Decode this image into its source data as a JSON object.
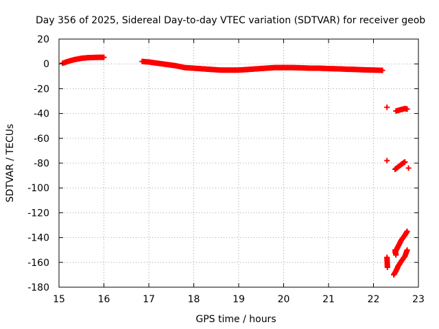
{
  "chart_data": {
    "type": "scatter",
    "title": "Day 356 of 2025, Sidereal Day-to-day VTEC variation (SDTVAR) for receiver geob",
    "xlabel": "GPS time / hours",
    "ylabel": "SDTVAR / TECUs",
    "xlim": [
      15,
      23
    ],
    "ylim": [
      -180,
      20
    ],
    "xticks": [
      15,
      16,
      17,
      18,
      19,
      20,
      21,
      22,
      23
    ],
    "yticks": [
      20,
      0,
      -20,
      -40,
      -60,
      -80,
      -100,
      -120,
      -140,
      -160,
      -180
    ],
    "grid": true,
    "marker": "+",
    "color": "#ff0000",
    "series": [
      {
        "name": "SDTVAR",
        "segments": [
          {
            "x": [
              15.08,
              15.2,
              15.35,
              15.5,
              15.65,
              15.8,
              15.95,
              16.0
            ],
            "y": [
              0.5,
              2,
              3.5,
              4.5,
              5,
              5.2,
              5.3,
              5.3
            ]
          },
          {
            "x": [
              16.85,
              17.0,
              17.2,
              17.4,
              17.6,
              17.8,
              18.0,
              18.2,
              18.4,
              18.6,
              18.8,
              19.0,
              19.2,
              19.4,
              19.6,
              19.8,
              20.0,
              20.2,
              20.4,
              20.6,
              20.8,
              21.0,
              21.2,
              21.4,
              21.6,
              21.8,
              22.0,
              22.2
            ],
            "y": [
              2,
              1.5,
              0.5,
              -0.5,
              -1.5,
              -3,
              -3.5,
              -4,
              -4.5,
              -5,
              -5,
              -5,
              -4.5,
              -4,
              -3.5,
              -3,
              -3,
              -3,
              -3.2,
              -3.5,
              -3.5,
              -3.8,
              -4,
              -4.3,
              -4.5,
              -4.8,
              -5,
              -5.2
            ]
          },
          {
            "x": [
              22.3
            ],
            "y": [
              -35
            ]
          },
          {
            "x": [
              22.5,
              22.6,
              22.7,
              22.75
            ],
            "y": [
              -38,
              -37,
              -36,
              -36.5
            ]
          },
          {
            "x": [
              22.3
            ],
            "y": [
              -78
            ]
          },
          {
            "x": [
              22.48,
              22.55,
              22.62,
              22.7
            ],
            "y": [
              -85,
              -83,
              -81,
              -79
            ]
          },
          {
            "x": [
              22.78
            ],
            "y": [
              -84
            ]
          },
          {
            "x": [
              22.48,
              22.55,
              22.62,
              22.7,
              22.75
            ],
            "y": [
              -152,
              -147,
              -142,
              -138,
              -135
            ]
          },
          {
            "x": [
              22.3,
              22.31
            ],
            "y": [
              -156,
              -164
            ]
          },
          {
            "x": [
              22.45,
              22.5,
              22.55,
              22.62,
              22.7,
              22.75
            ],
            "y": [
              -170,
              -167,
              -163,
              -159,
              -155,
              -150
            ]
          },
          {
            "x": [
              22.48,
              22.5
            ],
            "y": [
              -150,
              -154
            ]
          }
        ]
      }
    ]
  }
}
